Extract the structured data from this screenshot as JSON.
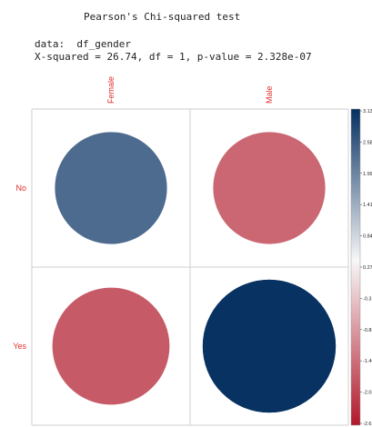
{
  "header": {
    "test_title": "Pearson's Chi-squared test",
    "data_line": "data:  df_gender",
    "stat_line": "X-squared = 26.74, df = 1, p-value = 2.328e-07"
  },
  "chart_data": {
    "type": "heatmap",
    "subtype": "corrplot-circle",
    "columns": [
      "Female",
      "Male"
    ],
    "rows": [
      "No",
      "Yes"
    ],
    "values": [
      [
        2.2,
        -2.2
      ],
      [
        -2.4,
        3.1
      ]
    ],
    "scale": {
      "range": [
        -3.4,
        3.13
      ],
      "ticks": [
        "3.13",
        "2.58",
        "1.99",
        "1.41",
        "0.84",
        "0.27",
        "-0.31",
        "-0.88",
        "-1.46",
        "-2.03",
        "-2.6"
      ],
      "colors": {
        "negative": "#b2182b",
        "neutral": "#f7f7f7",
        "positive": "#053061"
      }
    },
    "grid": true,
    "label_color": "#e0302b"
  }
}
